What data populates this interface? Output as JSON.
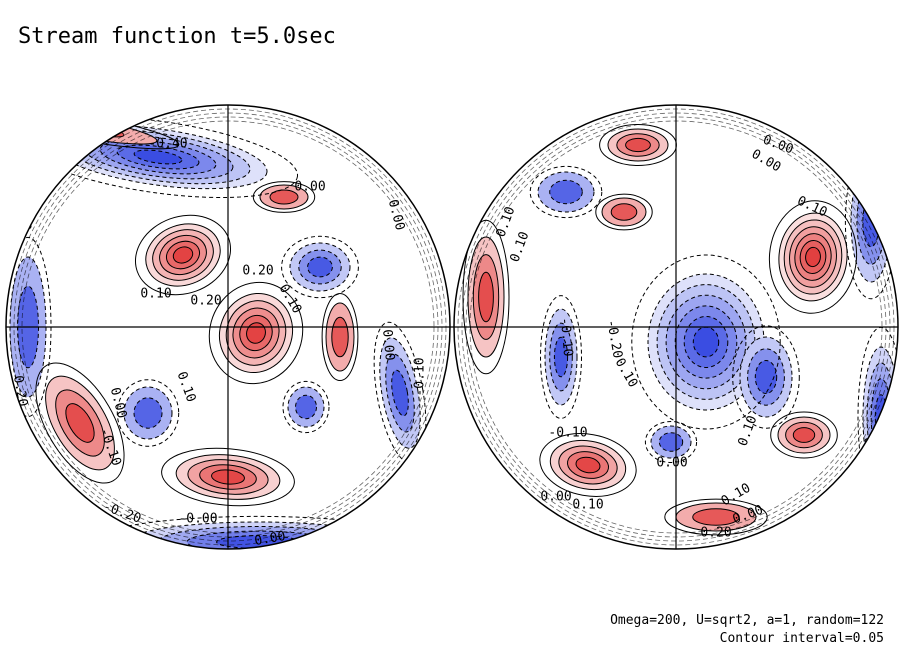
{
  "title": "Stream function t=5.0sec",
  "caption": {
    "params": "Omega=200, U=sqrt2, a=1, random=122",
    "contour_interval": "Contour interval=0.05"
  },
  "colors": {
    "positive": "#e03030",
    "negative": "#2a3ee0",
    "neutral": "#ffffff",
    "lines": "#000000"
  },
  "hemispheres": [
    {
      "name": "left",
      "blobs": [
        {
          "sign": 1,
          "amp": 0.27
        },
        {
          "sign": 1,
          "amp": 0.27
        },
        {
          "sign": 1,
          "amp": 0.15
        },
        {
          "sign": 1,
          "amp": 0.18
        },
        {
          "sign": 1,
          "amp": 0.12
        },
        {
          "sign": 1,
          "amp": 0.12
        },
        {
          "sign": -1,
          "amp": 0.3
        },
        {
          "sign": -1,
          "amp": 0.15
        },
        {
          "sign": -1,
          "amp": 0.12
        },
        {
          "sign": -1,
          "amp": 0.15
        },
        {
          "sign": -1,
          "amp": 0.12
        },
        {
          "sign": -1,
          "amp": 0.2
        },
        {
          "sign": 1,
          "amp": 0.12
        },
        {
          "sign": -1,
          "amp": 0.12
        }
      ],
      "labels": [
        "-0.40",
        "0.00",
        "0.00",
        "0.00",
        "0.20",
        "0.20",
        "0.10",
        "0.10",
        "0.00",
        "-0.10",
        "0.10",
        "0.20",
        "0.00",
        "-0.10",
        "-0.20",
        "-0.00",
        "0.00"
      ]
    },
    {
      "name": "right",
      "blobs": [
        {
          "sign": 1,
          "amp": 0.3
        },
        {
          "sign": 1,
          "amp": 0.15
        },
        {
          "sign": 1,
          "amp": 0.12
        },
        {
          "sign": 1,
          "amp": 0.2
        },
        {
          "sign": 1,
          "amp": 0.15
        },
        {
          "sign": 1,
          "amp": 0.15
        },
        {
          "sign": 1,
          "amp": 0.12
        },
        {
          "sign": -1,
          "amp": 0.3
        },
        {
          "sign": -1,
          "amp": 0.15
        },
        {
          "sign": -1,
          "amp": 0.12
        },
        {
          "sign": -1,
          "amp": 0.15
        },
        {
          "sign": -1,
          "amp": 0.12
        },
        {
          "sign": -1,
          "amp": 0.15
        },
        {
          "sign": -1,
          "amp": 0.2
        }
      ],
      "labels": [
        "0.00",
        "0.00",
        "0.10",
        "0.10",
        "0.10",
        "0.10",
        "-0.10",
        "-0.20",
        "0.10",
        "-0.10",
        "0.10",
        "0.00",
        "0.10",
        "0.00",
        "0.00",
        "0.10",
        "0.20",
        "-0.10"
      ]
    }
  ]
}
